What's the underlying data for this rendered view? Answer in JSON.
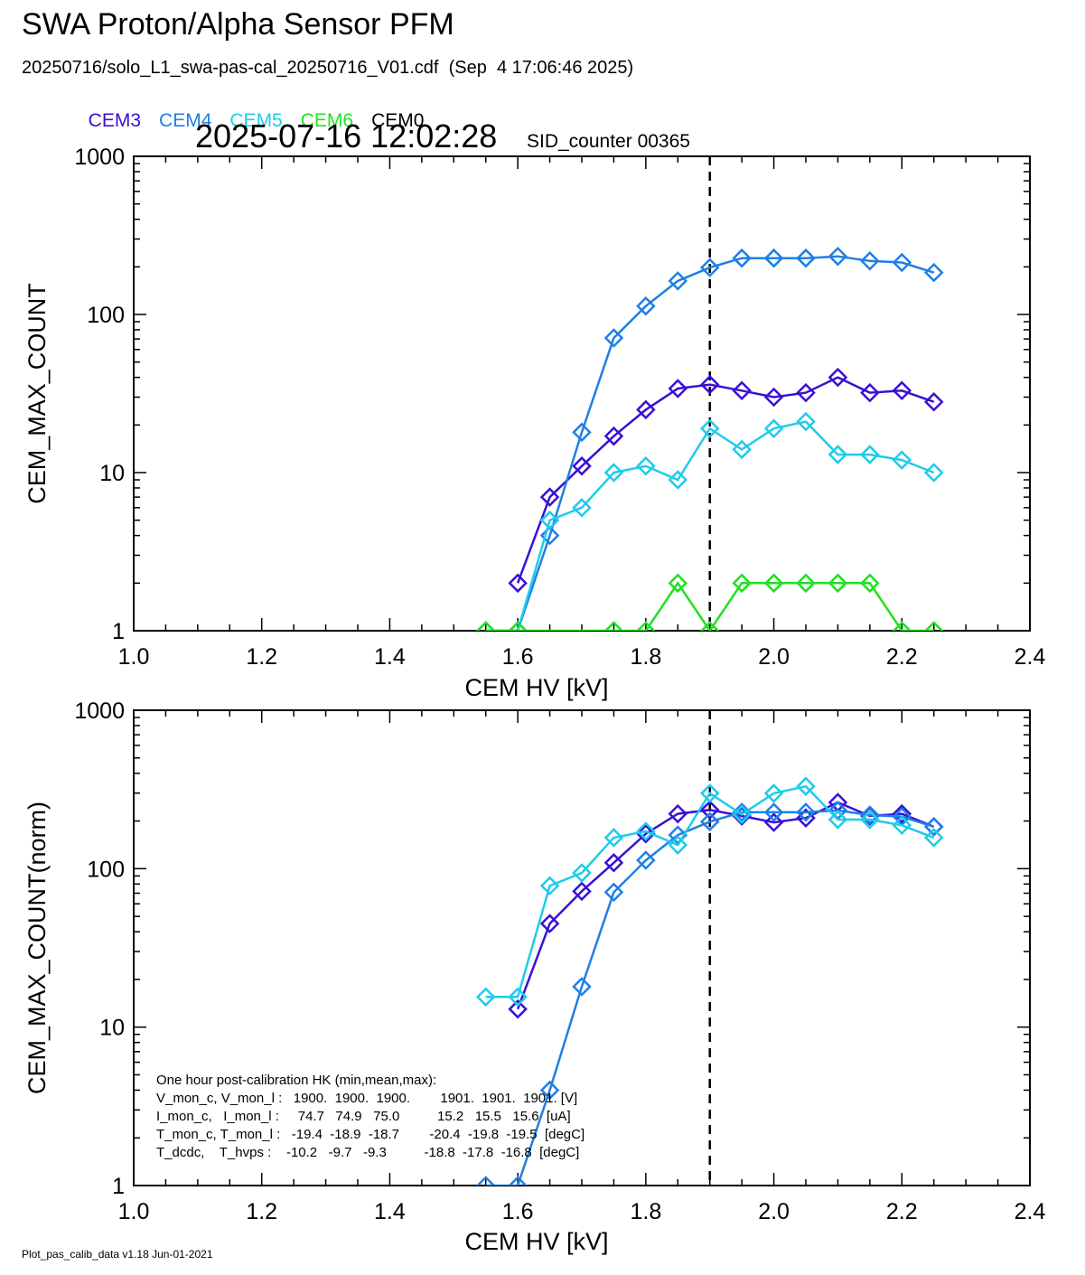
{
  "header": {
    "title": "SWA Proton/Alpha Sensor PFM",
    "file_line": "20250716/solo_L1_swa-pas-cal_20250716_V01.cdf  (Sep  4 17:06:46 2025)",
    "timestamp": "2025-07-16 12:02:28",
    "sid_counter": "SID_counter 00365"
  },
  "legend": [
    {
      "label": "CEM3",
      "color": "#3a0fd6"
    },
    {
      "label": "CEM4",
      "color": "#1f7fe6"
    },
    {
      "label": "CEM5",
      "color": "#1fcbeb"
    },
    {
      "label": "CEM6",
      "color": "#22e022"
    },
    {
      "label": "CEM0",
      "color": "#000000"
    }
  ],
  "hk_box": {
    "title": "One hour post-calibration HK (min,mean,max):",
    "lines": [
      "V_mon_c, V_mon_l :   1900.  1900.  1900.        1901.  1901.  1901. [V]",
      "I_mon_c,   I_mon_l :     74.7   74.9   75.0          15.2   15.5   15.6  [uA]",
      "T_mon_c, T_mon_l :   -19.4  -18.9  -18.7        -20.4  -19.8  -19.5  [degC]",
      "T_dcdc,    T_hvps :    -10.2   -9.7   -9.3          -18.8  -17.8  -16.8  [degC]"
    ]
  },
  "footer": "Plot_pas_calib_data v1.18 Jun-01-2021",
  "chart_data": [
    {
      "type": "line",
      "xlabel": "CEM HV [kV]",
      "ylabel": "CEM_MAX_COUNT",
      "xlim": [
        1.0,
        2.4
      ],
      "ylim": [
        1,
        1000
      ],
      "yscale": "log",
      "x_tick_labels": [
        "1.0",
        "1.2",
        "1.4",
        "1.6",
        "1.8",
        "2.0",
        "2.2",
        "2.4"
      ],
      "y_tick_labels": [
        "1",
        "10",
        "100",
        "1000"
      ],
      "vline_x": 1.9,
      "marker": "diamond",
      "series": [
        {
          "name": "CEM3",
          "color": "#3a0fd6",
          "x": [
            1.6,
            1.65,
            1.7,
            1.75,
            1.8,
            1.85,
            1.9,
            1.95,
            2.0,
            2.05,
            2.1,
            2.15,
            2.2,
            2.25
          ],
          "y": [
            2,
            7,
            11,
            17,
            25,
            34,
            36,
            33,
            30,
            32,
            40,
            32,
            33,
            28
          ]
        },
        {
          "name": "CEM4",
          "color": "#1f7fe6",
          "x": [
            1.55,
            1.6,
            1.65,
            1.7,
            1.75,
            1.8,
            1.85,
            1.9,
            1.95,
            2.0,
            2.05,
            2.1,
            2.15,
            2.2,
            2.25
          ],
          "y": [
            1,
            1,
            4,
            18,
            71,
            113,
            163,
            198,
            227,
            227,
            227,
            233,
            218,
            213,
            184
          ]
        },
        {
          "name": "CEM5",
          "color": "#1fcbeb",
          "x": [
            1.55,
            1.6,
            1.65,
            1.7,
            1.75,
            1.8,
            1.85,
            1.9,
            1.95,
            2.0,
            2.05,
            2.1,
            2.15,
            2.2,
            2.25
          ],
          "y": [
            1,
            1,
            5,
            6,
            10,
            11,
            9,
            19,
            14,
            19,
            21,
            13,
            13,
            12,
            10
          ]
        },
        {
          "name": "CEM6",
          "color": "#22e022",
          "x": [
            1.55,
            1.6,
            1.75,
            1.8,
            1.85,
            1.9,
            1.95,
            2.0,
            2.05,
            2.1,
            2.15,
            2.2,
            2.25
          ],
          "y": [
            1,
            1,
            1,
            1,
            2,
            1,
            2,
            2,
            2,
            2,
            2,
            1,
            1
          ]
        }
      ]
    },
    {
      "type": "line",
      "xlabel": "CEM HV [kV]",
      "ylabel": "CEM_MAX_COUNT(norm)",
      "xlim": [
        1.0,
        2.4
      ],
      "ylim": [
        1,
        1000
      ],
      "yscale": "log",
      "x_tick_labels": [
        "1.0",
        "1.2",
        "1.4",
        "1.6",
        "1.8",
        "2.0",
        "2.2",
        "2.4"
      ],
      "y_tick_labels": [
        "1",
        "10",
        "100",
        "1000"
      ],
      "vline_x": 1.9,
      "marker": "diamond",
      "series": [
        {
          "name": "CEM3",
          "color": "#3a0fd6",
          "x": [
            1.6,
            1.65,
            1.7,
            1.75,
            1.8,
            1.85,
            1.9,
            1.95,
            2.0,
            2.05,
            2.1,
            2.15,
            2.2,
            2.25
          ],
          "y": [
            13,
            45,
            72,
            109,
            166,
            222,
            235,
            215,
            196,
            209,
            262,
            215,
            222,
            184
          ]
        },
        {
          "name": "CEM4",
          "color": "#1f7fe6",
          "x": [
            1.55,
            1.6,
            1.65,
            1.7,
            1.75,
            1.8,
            1.85,
            1.9,
            1.95,
            2.0,
            2.05,
            2.1,
            2.15,
            2.2,
            2.25
          ],
          "y": [
            1,
            1,
            4,
            18,
            71,
            113,
            163,
            198,
            227,
            227,
            227,
            233,
            218,
            213,
            184
          ]
        },
        {
          "name": "CEM5",
          "color": "#1fcbeb",
          "x": [
            1.55,
            1.6,
            1.65,
            1.7,
            1.75,
            1.8,
            1.85,
            1.9,
            1.95,
            2.0,
            2.05,
            2.1,
            2.15,
            2.2,
            2.25
          ],
          "y": [
            15.5,
            15.5,
            78,
            94,
            157,
            172,
            141,
            299,
            220,
            299,
            331,
            204,
            204,
            188,
            157
          ]
        }
      ]
    }
  ]
}
